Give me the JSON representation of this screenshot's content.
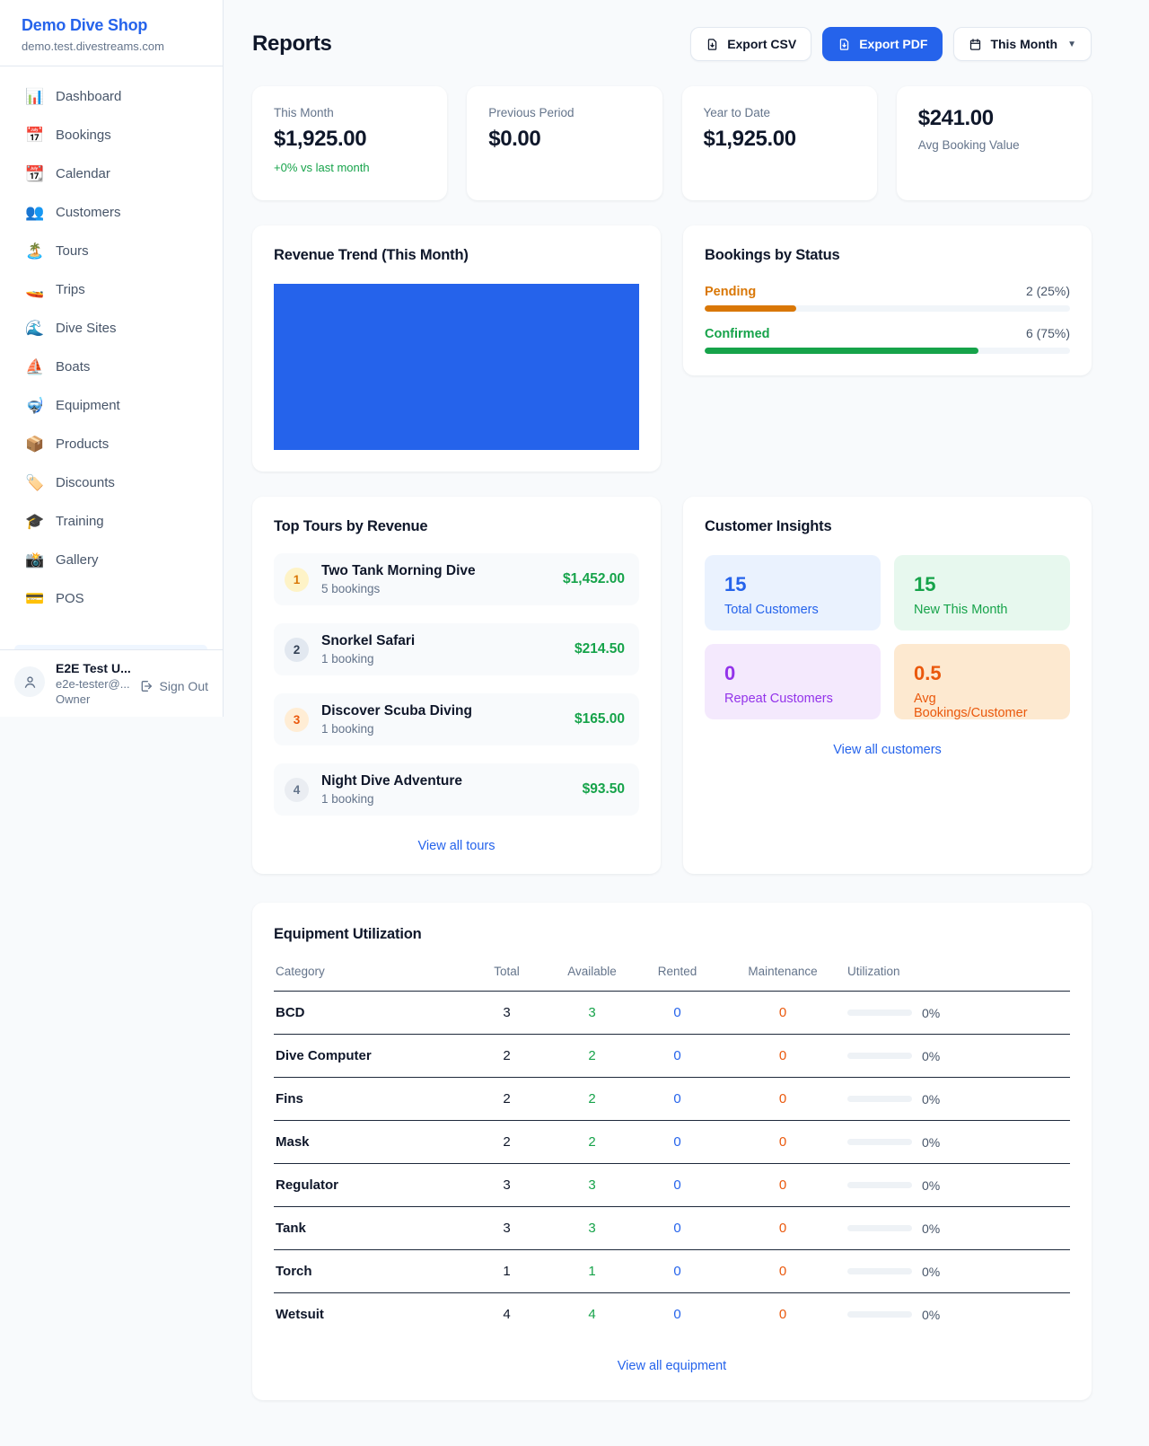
{
  "brand": {
    "name": "Demo Dive Shop",
    "domain": "demo.test.divestreams.com"
  },
  "sidebar": {
    "items": [
      {
        "label": "Dashboard",
        "icon": "📊"
      },
      {
        "label": "Bookings",
        "icon": "📅"
      },
      {
        "label": "Calendar",
        "icon": "📆"
      },
      {
        "label": "Customers",
        "icon": "👥"
      },
      {
        "label": "Tours",
        "icon": "🏝️"
      },
      {
        "label": "Trips",
        "icon": "🚤"
      },
      {
        "label": "Dive Sites",
        "icon": "🌊"
      },
      {
        "label": "Boats",
        "icon": "⛵"
      },
      {
        "label": "Equipment",
        "icon": "🤿"
      },
      {
        "label": "Products",
        "icon": "📦"
      },
      {
        "label": "Discounts",
        "icon": "🏷️"
      },
      {
        "label": "Training",
        "icon": "🎓"
      },
      {
        "label": "Gallery",
        "icon": "📸"
      },
      {
        "label": "POS",
        "icon": "💳"
      }
    ],
    "user": {
      "name": "E2E Test U...",
      "email": "e2e-tester@...",
      "role": "Owner",
      "sign_out_label": "Sign Out"
    }
  },
  "header": {
    "title": "Reports",
    "export_csv_label": "Export CSV",
    "export_pdf_label": "Export PDF",
    "period_label": "This Month",
    "primary_color": "#2563eb"
  },
  "stats": [
    {
      "label": "This Month",
      "value": "$1,925.00",
      "delta": "+0% vs last month"
    },
    {
      "label": "Previous Period",
      "value": "$0.00"
    },
    {
      "label": "Year to Date",
      "value": "$1,925.00"
    },
    {
      "label": "Avg Booking Value",
      "value": "$241.00"
    }
  ],
  "revenue_trend": {
    "title": "Revenue Trend (This Month)",
    "bar_color": "#2563eb"
  },
  "bookings_by_status": {
    "title": "Bookings by Status",
    "rows": [
      {
        "label": "Pending",
        "count": "2 (25%)",
        "pct": 25,
        "color": "#d97706"
      },
      {
        "label": "Confirmed",
        "count": "6 (75%)",
        "pct": 75,
        "color": "#16a34a"
      }
    ]
  },
  "top_tours": {
    "title": "Top Tours by Revenue",
    "items": [
      {
        "rank": "1",
        "name": "Two Tank Morning Dive",
        "bookings": "5 bookings",
        "amount": "$1,452.00"
      },
      {
        "rank": "2",
        "name": "Snorkel Safari",
        "bookings": "1 booking",
        "amount": "$214.50"
      },
      {
        "rank": "3",
        "name": "Discover Scuba Diving",
        "bookings": "1 booking",
        "amount": "$165.00"
      },
      {
        "rank": "4",
        "name": "Night Dive Adventure",
        "bookings": "1 booking",
        "amount": "$93.50"
      }
    ],
    "view_all": "View all tours"
  },
  "customer_insights": {
    "title": "Customer Insights",
    "cells": [
      {
        "value": "15",
        "label": "Total Customers",
        "color": "#2563eb",
        "bg": "#eaf2fe"
      },
      {
        "value": "15",
        "label": "New This Month",
        "color": "#16a34a",
        "bg": "#e7f8ee"
      },
      {
        "value": "0",
        "label": "Repeat Customers",
        "color": "#9333ea",
        "bg": "#f4e9fd"
      },
      {
        "value": "0.5",
        "label": "Avg Bookings/Customer",
        "color": "#ea580c",
        "bg": "#fde9d0"
      }
    ],
    "view_all": "View all customers"
  },
  "equipment": {
    "title": "Equipment Utilization",
    "columns": [
      "Category",
      "Total",
      "Available",
      "Rented",
      "Maintenance",
      "Utilization"
    ],
    "rows": [
      {
        "category": "BCD",
        "total": "3",
        "available": "3",
        "rented": "0",
        "maintenance": "0",
        "utilization": "0%"
      },
      {
        "category": "Dive Computer",
        "total": "2",
        "available": "2",
        "rented": "0",
        "maintenance": "0",
        "utilization": "0%"
      },
      {
        "category": "Fins",
        "total": "2",
        "available": "2",
        "rented": "0",
        "maintenance": "0",
        "utilization": "0%"
      },
      {
        "category": "Mask",
        "total": "2",
        "available": "2",
        "rented": "0",
        "maintenance": "0",
        "utilization": "0%"
      },
      {
        "category": "Regulator",
        "total": "3",
        "available": "3",
        "rented": "0",
        "maintenance": "0",
        "utilization": "0%"
      },
      {
        "category": "Tank",
        "total": "3",
        "available": "3",
        "rented": "0",
        "maintenance": "0",
        "utilization": "0%"
      },
      {
        "category": "Torch",
        "total": "1",
        "available": "1",
        "rented": "0",
        "maintenance": "0",
        "utilization": "0%"
      },
      {
        "category": "Wetsuit",
        "total": "4",
        "available": "4",
        "rented": "0",
        "maintenance": "0",
        "utilization": "0%"
      }
    ],
    "view_all": "View all equipment"
  }
}
